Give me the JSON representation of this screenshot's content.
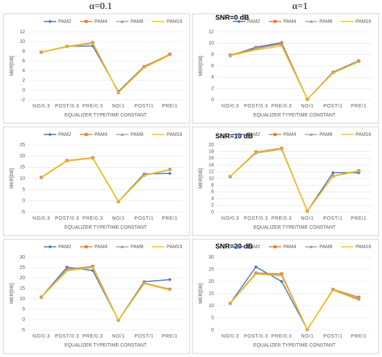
{
  "column_titles": [
    "α=0.1",
    "α=1"
  ],
  "row_titles": [
    "SNR=0 dB",
    "SNR=10 dB",
    "SNR=20 dB"
  ],
  "chart_data": [
    {
      "type": "line",
      "xlabel": "EQUALIZER TYPE/TIME CONSTANT",
      "ylabel": "MER[DB]",
      "categories": [
        "NO/0.3",
        "POST/0.3",
        "PRE/0.3",
        "NO/1",
        "POST/1",
        "PRE/1"
      ],
      "ylim": [
        -2,
        12
      ],
      "yticks": [
        -2,
        0,
        2,
        4,
        6,
        8,
        10,
        12
      ],
      "series": [
        {
          "name": "PAM2",
          "color": "#4472c4",
          "values": [
            7.8,
            9.0,
            9.1,
            -0.3,
            4.9,
            7.3
          ]
        },
        {
          "name": "PAM4",
          "color": "#ed7d31",
          "values": [
            7.8,
            9.0,
            9.8,
            -0.5,
            4.8,
            7.4
          ]
        },
        {
          "name": "PAM8",
          "color": "#a5a5a5",
          "values": [
            7.8,
            9.0,
            9.7,
            -0.5,
            4.7,
            7.3
          ]
        },
        {
          "name": "PAM16",
          "color": "#ffc000",
          "values": [
            7.8,
            8.9,
            9.6,
            -0.5,
            4.6,
            7.2
          ]
        }
      ]
    },
    {
      "type": "line",
      "xlabel": "EQUALIZER TYPE/TIME CONSTANT",
      "ylabel": "MER[DB]",
      "categories": [
        "NO/0.3",
        "POST/0.3",
        "PRE/0.3",
        "NO/1",
        "POST/1",
        "PRE/1"
      ],
      "ylim": [
        0,
        12
      ],
      "yticks": [
        0,
        2,
        4,
        6,
        8,
        10,
        12
      ],
      "series": [
        {
          "name": "PAM2",
          "color": "#4472c4",
          "values": [
            7.8,
            9.3,
            10.1,
            0.1,
            4.9,
            6.9
          ]
        },
        {
          "name": "PAM4",
          "color": "#ed7d31",
          "values": [
            7.9,
            9.1,
            9.9,
            0.1,
            4.8,
            6.8
          ]
        },
        {
          "name": "PAM8",
          "color": "#a5a5a5",
          "values": [
            7.8,
            9.0,
            9.8,
            0.1,
            4.8,
            6.8
          ]
        },
        {
          "name": "PAM16",
          "color": "#ffc000",
          "values": [
            7.8,
            8.8,
            9.5,
            0.1,
            4.7,
            6.7
          ]
        }
      ]
    },
    {
      "type": "line",
      "xlabel": "EQUALIZER TYPE/TIME CONSTANT",
      "ylabel": "MER[DB]",
      "categories": [
        "NO/0.3",
        "POST/0.3",
        "PRE/0.3",
        "NO/1",
        "POST/1",
        "PRE/1"
      ],
      "ylim": [
        -5,
        25
      ],
      "yticks": [
        -5,
        0,
        5,
        10,
        15,
        20,
        25
      ],
      "series": [
        {
          "name": "PAM2",
          "color": "#4472c4",
          "values": [
            10.5,
            18.0,
            19.2,
            -0.3,
            12.0,
            12.3
          ]
        },
        {
          "name": "PAM4",
          "color": "#ed7d31",
          "values": [
            10.5,
            18.0,
            19.2,
            -0.3,
            11.5,
            14.0
          ]
        },
        {
          "name": "PAM8",
          "color": "#a5a5a5",
          "values": [
            10.4,
            17.9,
            19.1,
            -0.3,
            11.5,
            14.0
          ]
        },
        {
          "name": "PAM16",
          "color": "#ffc000",
          "values": [
            10.4,
            17.8,
            19.0,
            -0.4,
            11.3,
            13.8
          ]
        }
      ]
    },
    {
      "type": "line",
      "xlabel": "EQUALIZER TYPE/TIME CONSTANT",
      "ylabel": "MER[DB]",
      "categories": [
        "NO/0.3",
        "POST/0.3",
        "PRE/0.3",
        "NO/1",
        "POST/1",
        "PRE/1"
      ],
      "ylim": [
        0,
        20
      ],
      "yticks": [
        0,
        2,
        4,
        6,
        8,
        10,
        12,
        14,
        16,
        18,
        20
      ],
      "series": [
        {
          "name": "PAM2",
          "color": "#4472c4",
          "values": [
            10.6,
            17.6,
            18.7,
            0.3,
            11.7,
            11.7
          ]
        },
        {
          "name": "PAM4",
          "color": "#ed7d31",
          "values": [
            10.6,
            17.9,
            19.0,
            0.3,
            10.7,
            12.3
          ]
        },
        {
          "name": "PAM8",
          "color": "#a5a5a5",
          "values": [
            10.6,
            17.8,
            18.9,
            0.3,
            10.7,
            12.2
          ]
        },
        {
          "name": "PAM16",
          "color": "#ffc000",
          "values": [
            10.6,
            17.7,
            18.7,
            0.3,
            10.6,
            12.2
          ]
        }
      ]
    },
    {
      "type": "line",
      "xlabel": "EQUALIZER TYPE/TIME CONSTANT",
      "ylabel": "MER[DB]",
      "categories": [
        "NO/0.3",
        "POST/0.3",
        "PRE/0.3",
        "NO/1",
        "POST/1",
        "PRE/1"
      ],
      "ylim": [
        -5,
        30
      ],
      "yticks": [
        -5,
        0,
        5,
        10,
        15,
        20,
        25,
        30
      ],
      "series": [
        {
          "name": "PAM2",
          "color": "#4472c4",
          "values": [
            10.8,
            25.2,
            23.6,
            -0.3,
            18.2,
            19.2
          ]
        },
        {
          "name": "PAM4",
          "color": "#ed7d31",
          "values": [
            10.8,
            24.2,
            25.6,
            -0.3,
            17.6,
            14.6
          ]
        },
        {
          "name": "PAM8",
          "color": "#a5a5a5",
          "values": [
            10.8,
            24.0,
            25.4,
            -0.3,
            17.5,
            14.5
          ]
        },
        {
          "name": "PAM16",
          "color": "#ffc000",
          "values": [
            10.7,
            23.4,
            25.0,
            -0.4,
            17.2,
            14.2
          ]
        }
      ]
    },
    {
      "type": "line",
      "xlabel": "EQUALIZER TYPE/TIME CONSTANT",
      "ylabel": "MER[DB]",
      "categories": [
        "NO/0.3",
        "POST/0.3",
        "PRE/0.3",
        "NO/1",
        "POST/1",
        "PRE/1"
      ],
      "ylim": [
        0,
        30
      ],
      "yticks": [
        0,
        5,
        10,
        15,
        20,
        25,
        30
      ],
      "series": [
        {
          "name": "PAM2",
          "color": "#4472c4",
          "values": [
            11.0,
            26.0,
            20.0,
            0.2,
            16.5,
            12.8
          ]
        },
        {
          "name": "PAM4",
          "color": "#ed7d31",
          "values": [
            11.0,
            23.5,
            23.1,
            0.2,
            16.7,
            13.5
          ]
        },
        {
          "name": "PAM8",
          "color": "#a5a5a5",
          "values": [
            11.0,
            23.3,
            22.8,
            0.2,
            16.6,
            12.6
          ]
        },
        {
          "name": "PAM16",
          "color": "#ffc000",
          "values": [
            11.0,
            23.0,
            22.3,
            0.2,
            16.4,
            12.3
          ]
        }
      ]
    }
  ]
}
